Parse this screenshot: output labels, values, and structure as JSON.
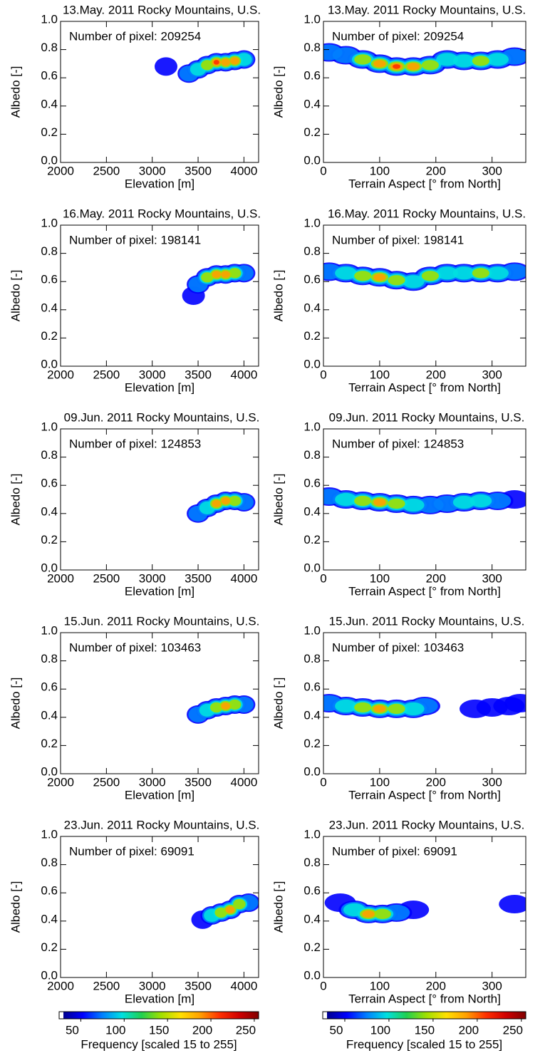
{
  "chart_data": [
    {
      "type": "density",
      "title": "13.May. 2011 Rocky Mountains, U.S.",
      "xlabel": "Elevation [m]",
      "ylabel": "Albedo [-]",
      "annotation": "Number of pixel: 209254",
      "xlim": [
        2000,
        4160
      ],
      "xticks": [
        2000,
        2500,
        3000,
        3500,
        4000
      ],
      "ylim": [
        0,
        1
      ],
      "yticks": [
        {
          "value": 0,
          "label": "0.0"
        },
        0.2,
        0.4,
        0.6,
        0.8,
        {
          "value": 1,
          "label": "1.0"
        }
      ],
      "x": [
        3150,
        3400,
        3500,
        3600,
        3700,
        3800,
        3900,
        4000
      ],
      "y": [
        0.68,
        0.63,
        0.66,
        0.69,
        0.71,
        0.71,
        0.72,
        0.73
      ],
      "values": [
        20,
        60,
        120,
        170,
        220,
        200,
        180,
        100
      ]
    },
    {
      "type": "density",
      "title": "13.May. 2011 Rocky Mountains, U.S.",
      "xlabel": "Terrain Aspect [° from North]",
      "ylabel": "Albedo [-]",
      "annotation": "Number of pixel: 209254",
      "xlim": [
        0,
        360
      ],
      "xticks": [
        0,
        100,
        200,
        300
      ],
      "ylim": [
        0,
        1
      ],
      "yticks": [
        {
          "value": 0,
          "label": "0.0"
        },
        0.2,
        0.4,
        0.6,
        0.8,
        {
          "value": 1,
          "label": "1.0"
        }
      ],
      "x": [
        10,
        40,
        70,
        100,
        130,
        160,
        190,
        220,
        250,
        280,
        310,
        340
      ],
      "y": [
        0.78,
        0.76,
        0.73,
        0.7,
        0.68,
        0.68,
        0.69,
        0.73,
        0.72,
        0.72,
        0.73,
        0.75
      ],
      "values": [
        60,
        90,
        140,
        200,
        220,
        200,
        160,
        120,
        130,
        140,
        110,
        60
      ]
    },
    {
      "type": "density",
      "title": "16.May. 2011 Rocky Mountains, U.S.",
      "xlabel": "Elevation [m]",
      "ylabel": "Albedo [-]",
      "annotation": "Number of pixel: 198141",
      "xlim": [
        2000,
        4160
      ],
      "xticks": [
        2000,
        2500,
        3000,
        3500,
        4000
      ],
      "ylim": [
        0,
        1
      ],
      "yticks": [
        {
          "value": 0,
          "label": "0.0"
        },
        0.2,
        0.4,
        0.6,
        0.8,
        {
          "value": 1,
          "label": "1.0"
        }
      ],
      "x": [
        3450,
        3500,
        3600,
        3700,
        3800,
        3900,
        4000
      ],
      "y": [
        0.5,
        0.58,
        0.63,
        0.65,
        0.65,
        0.66,
        0.66
      ],
      "values": [
        40,
        90,
        150,
        200,
        180,
        150,
        90
      ]
    },
    {
      "type": "density",
      "title": "16.May. 2011 Rocky Mountains, U.S.",
      "xlabel": "Terrain Aspect [° from North]",
      "ylabel": "Albedo [-]",
      "annotation": "Number of pixel: 198141",
      "xlim": [
        0,
        360
      ],
      "xticks": [
        0,
        100,
        200,
        300
      ],
      "ylim": [
        0,
        1
      ],
      "yticks": [
        {
          "value": 0,
          "label": "0.0"
        },
        0.2,
        0.4,
        0.6,
        0.8,
        {
          "value": 1,
          "label": "1.0"
        }
      ],
      "x": [
        10,
        40,
        70,
        100,
        130,
        160,
        190,
        220,
        250,
        280,
        310,
        340
      ],
      "y": [
        0.67,
        0.66,
        0.64,
        0.63,
        0.61,
        0.6,
        0.64,
        0.66,
        0.66,
        0.66,
        0.66,
        0.67
      ],
      "values": [
        80,
        120,
        170,
        200,
        170,
        130,
        150,
        110,
        130,
        140,
        100,
        60
      ]
    },
    {
      "type": "density",
      "title": "09.Jun. 2011 Rocky Mountains, U.S.",
      "xlabel": "Elevation [m]",
      "ylabel": "Albedo [-]",
      "annotation": "Number of pixel: 124853",
      "xlim": [
        2000,
        4160
      ],
      "xticks": [
        2000,
        2500,
        3000,
        3500,
        4000
      ],
      "ylim": [
        0,
        1
      ],
      "yticks": [
        {
          "value": 0,
          "label": "0.0"
        },
        0.2,
        0.4,
        0.6,
        0.8,
        {
          "value": 1,
          "label": "1.0"
        }
      ],
      "x": [
        3500,
        3600,
        3700,
        3800,
        3900,
        4000
      ],
      "y": [
        0.4,
        0.44,
        0.47,
        0.49,
        0.49,
        0.48
      ],
      "values": [
        60,
        120,
        180,
        200,
        150,
        80
      ]
    },
    {
      "type": "density",
      "title": "09.Jun. 2011 Rocky Mountains, U.S.",
      "xlabel": "Terrain Aspect [° from North]",
      "ylabel": "Albedo [-]",
      "annotation": "Number of pixel: 124853",
      "xlim": [
        0,
        360
      ],
      "xticks": [
        0,
        100,
        200,
        300
      ],
      "ylim": [
        0,
        1
      ],
      "yticks": [
        {
          "value": 0,
          "label": "0.0"
        },
        0.2,
        0.4,
        0.6,
        0.8,
        {
          "value": 1,
          "label": "1.0"
        }
      ],
      "x": [
        10,
        40,
        70,
        100,
        130,
        160,
        190,
        220,
        250,
        280,
        310,
        340
      ],
      "y": [
        0.52,
        0.5,
        0.49,
        0.48,
        0.47,
        0.46,
        0.46,
        0.47,
        0.48,
        0.49,
        0.49,
        0.5
      ],
      "values": [
        70,
        100,
        140,
        180,
        160,
        120,
        90,
        90,
        110,
        100,
        80,
        50
      ]
    },
    {
      "type": "density",
      "title": "15.Jun. 2011 Rocky Mountains, U.S.",
      "xlabel": "Elevation [m]",
      "ylabel": "Albedo [-]",
      "annotation": "Number of pixel: 103463",
      "xlim": [
        2000,
        4160
      ],
      "xticks": [
        2000,
        2500,
        3000,
        3500,
        4000
      ],
      "ylim": [
        0,
        1
      ],
      "yticks": [
        {
          "value": 0,
          "label": "0.0"
        },
        0.2,
        0.4,
        0.6,
        0.8,
        {
          "value": 1,
          "label": "1.0"
        }
      ],
      "x": [
        3500,
        3600,
        3700,
        3800,
        3900,
        4000
      ],
      "y": [
        0.42,
        0.45,
        0.47,
        0.48,
        0.49,
        0.49
      ],
      "values": [
        60,
        130,
        170,
        210,
        170,
        80
      ]
    },
    {
      "type": "density",
      "title": "15.Jun. 2011 Rocky Mountains, U.S.",
      "xlabel": "Terrain Aspect [° from North]",
      "ylabel": "Albedo [-]",
      "annotation": "Number of pixel: 103463",
      "xlim": [
        0,
        360
      ],
      "xticks": [
        0,
        100,
        200,
        300
      ],
      "ylim": [
        0,
        1
      ],
      "yticks": [
        {
          "value": 0,
          "label": "0.0"
        },
        0.2,
        0.4,
        0.6,
        0.8,
        {
          "value": 1,
          "label": "1.0"
        }
      ],
      "x": [
        10,
        40,
        70,
        100,
        130,
        160,
        180,
        270,
        300,
        330,
        350
      ],
      "y": [
        0.5,
        0.48,
        0.47,
        0.46,
        0.46,
        0.46,
        0.48,
        0.46,
        0.47,
        0.48,
        0.5
      ],
      "values": [
        90,
        130,
        170,
        180,
        140,
        100,
        60,
        30,
        40,
        40,
        30
      ]
    },
    {
      "type": "density",
      "title": "23.Jun. 2011 Rocky Mountains, U.S.",
      "xlabel": "Elevation [m]",
      "ylabel": "Albedo [-]",
      "annotation": "Number of pixel: 69091",
      "xlim": [
        2000,
        4160
      ],
      "xticks": [
        2000,
        2500,
        3000,
        3500,
        4000
      ],
      "ylim": [
        0,
        1
      ],
      "yticks": [
        {
          "value": 0,
          "label": "0.0"
        },
        0.2,
        0.4,
        0.6,
        0.8,
        {
          "value": 1,
          "label": "1.0"
        }
      ],
      "x": [
        3550,
        3650,
        3750,
        3850,
        3950,
        4050
      ],
      "y": [
        0.41,
        0.44,
        0.46,
        0.48,
        0.52,
        0.53
      ],
      "values": [
        50,
        110,
        160,
        200,
        140,
        60
      ]
    },
    {
      "type": "density",
      "title": "23.Jun. 2011 Rocky Mountains, U.S.",
      "xlabel": "Terrain Aspect [° from North]",
      "ylabel": "Albedo [-]",
      "annotation": "Number of pixel: 69091",
      "xlim": [
        0,
        360
      ],
      "xticks": [
        0,
        100,
        200,
        300
      ],
      "ylim": [
        0,
        1
      ],
      "yticks": [
        {
          "value": 0,
          "label": "0.0"
        },
        0.2,
        0.4,
        0.6,
        0.8,
        {
          "value": 1,
          "label": "1.0"
        }
      ],
      "x": [
        30,
        55,
        80,
        105,
        130,
        160,
        340
      ],
      "y": [
        0.53,
        0.48,
        0.45,
        0.45,
        0.46,
        0.48,
        0.52
      ],
      "values": [
        40,
        120,
        200,
        160,
        90,
        40,
        20
      ]
    },
    {
      "type": "colorbar",
      "xlabel": "Frequency [scaled 15 to 255]",
      "xlim": [
        25,
        255
      ],
      "xticks": [
        50,
        100,
        150,
        200,
        250
      ],
      "colors": [
        "#00008f",
        "#0000ff",
        "#0080ff",
        "#00e0e0",
        "#20d050",
        "#a0e000",
        "#ffe000",
        "#ffa000",
        "#ff3000",
        "#d00000",
        "#800000"
      ]
    },
    {
      "type": "colorbar",
      "xlabel": "Frequency [scaled 15 to 255]",
      "xlim": [
        25,
        255
      ],
      "xticks": [
        50,
        100,
        150,
        200,
        250
      ],
      "colors": [
        "#00008f",
        "#0000ff",
        "#0080ff",
        "#00e0e0",
        "#20d050",
        "#a0e000",
        "#ffe000",
        "#ffa000",
        "#ff3000",
        "#d00000",
        "#800000"
      ]
    }
  ]
}
